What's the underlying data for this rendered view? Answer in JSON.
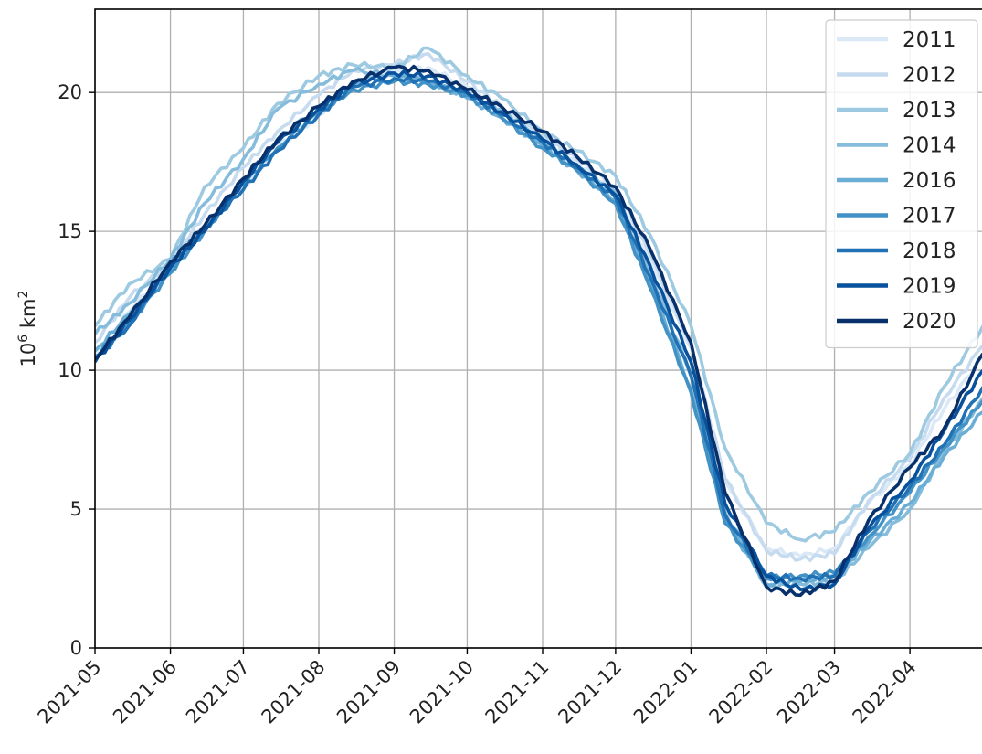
{
  "chart_data": {
    "type": "line",
    "title": "",
    "xlabel": "",
    "ylabel_base": "10",
    "ylabel_exp1": "6",
    "ylabel_unit": " km",
    "ylabel_exp2": "2",
    "x_ticks": [
      "2021-05",
      "2021-06",
      "2021-07",
      "2021-08",
      "2021-09",
      "2021-10",
      "2021-11",
      "2021-12",
      "2022-01",
      "2022-02",
      "2022-03",
      "2022-04"
    ],
    "x_domain": [
      "2021-05-01",
      "2022-05-01"
    ],
    "ylim": [
      0,
      23
    ],
    "y_ticks": [
      0,
      5,
      10,
      15,
      20
    ],
    "y_tick_labels": [
      "0",
      "5",
      "10",
      "15",
      "20"
    ],
    "grid": true,
    "legend_position": "top-right",
    "series": [
      {
        "name": "2011",
        "color": "#dbe9f6",
        "dates": [
          "2021-05-01",
          "2021-05-15",
          "2021-06-01",
          "2021-06-15",
          "2021-07-01",
          "2021-07-15",
          "2021-08-01",
          "2021-08-15",
          "2021-09-01",
          "2021-09-15",
          "2021-10-01",
          "2021-10-15",
          "2021-11-01",
          "2021-11-15",
          "2021-12-01",
          "2021-12-15",
          "2022-01-01",
          "2022-01-15",
          "2022-02-01",
          "2022-02-15",
          "2022-03-01",
          "2022-03-15",
          "2022-04-01",
          "2022-04-15",
          "2022-05-01"
        ],
        "values": [
          10.6,
          12.1,
          13.8,
          15.2,
          16.6,
          18.0,
          19.2,
          20.3,
          20.8,
          20.9,
          20.2,
          19.5,
          18.3,
          17.5,
          16.4,
          14.0,
          10.8,
          6.0,
          3.6,
          3.3,
          3.6,
          5.2,
          6.6,
          8.6,
          10.5
        ]
      },
      {
        "name": "2012",
        "color": "#c6dbef",
        "dates": [
          "2021-05-01",
          "2021-05-15",
          "2021-06-01",
          "2021-06-15",
          "2021-07-01",
          "2021-07-15",
          "2021-08-01",
          "2021-08-15",
          "2021-09-01",
          "2021-09-15",
          "2021-10-01",
          "2021-10-15",
          "2021-11-01",
          "2021-11-15",
          "2021-12-01",
          "2021-12-15",
          "2022-01-01",
          "2022-01-15",
          "2022-02-01",
          "2022-02-15",
          "2022-03-01",
          "2022-03-15",
          "2022-04-01",
          "2022-04-15",
          "2022-05-01"
        ],
        "values": [
          11.0,
          12.6,
          13.9,
          15.6,
          17.3,
          18.6,
          19.9,
          20.8,
          21.0,
          21.4,
          20.4,
          19.5,
          18.4,
          17.6,
          16.6,
          14.2,
          10.9,
          6.1,
          3.5,
          3.2,
          3.4,
          5.3,
          6.8,
          9.0,
          10.9
        ]
      },
      {
        "name": "2013",
        "color": "#9ecae1",
        "dates": [
          "2021-05-01",
          "2021-05-15",
          "2021-06-01",
          "2021-06-15",
          "2021-07-01",
          "2021-07-15",
          "2021-08-01",
          "2021-08-15",
          "2021-09-01",
          "2021-09-15",
          "2021-10-01",
          "2021-10-15",
          "2021-11-01",
          "2021-11-15",
          "2021-12-01",
          "2021-12-15",
          "2022-01-01",
          "2022-01-15",
          "2022-02-01",
          "2022-02-15",
          "2022-03-01",
          "2022-03-15",
          "2022-04-01",
          "2022-04-15",
          "2022-05-01"
        ],
        "values": [
          11.6,
          13.1,
          14.0,
          16.6,
          18.0,
          19.6,
          20.6,
          21.0,
          20.9,
          21.6,
          20.6,
          19.8,
          18.6,
          17.9,
          17.0,
          14.9,
          11.6,
          7.2,
          4.5,
          3.9,
          4.2,
          5.6,
          7.0,
          9.4,
          11.6
        ]
      },
      {
        "name": "2014",
        "color": "#85bcdb",
        "dates": [
          "2021-05-01",
          "2021-05-15",
          "2021-06-01",
          "2021-06-15",
          "2021-07-01",
          "2021-07-15",
          "2021-08-01",
          "2021-08-15",
          "2021-09-01",
          "2021-09-15",
          "2021-10-01",
          "2021-10-15",
          "2021-11-01",
          "2021-11-15",
          "2021-12-01",
          "2021-12-15",
          "2022-01-01",
          "2022-01-15",
          "2022-02-01",
          "2022-02-15",
          "2022-03-01",
          "2022-03-15",
          "2022-04-01",
          "2022-04-15",
          "2022-05-01"
        ],
        "values": [
          11.3,
          12.4,
          14.0,
          16.0,
          17.6,
          19.4,
          20.3,
          20.8,
          20.6,
          20.4,
          19.9,
          19.4,
          18.3,
          17.4,
          16.4,
          13.6,
          9.8,
          4.9,
          2.2,
          2.3,
          2.4,
          3.6,
          5.0,
          7.0,
          9.0
        ]
      },
      {
        "name": "2016",
        "color": "#6aaed6",
        "dates": [
          "2021-05-01",
          "2021-05-15",
          "2021-06-01",
          "2021-06-15",
          "2021-07-01",
          "2021-07-15",
          "2021-08-01",
          "2021-08-15",
          "2021-09-01",
          "2021-09-15",
          "2021-10-01",
          "2021-10-15",
          "2021-11-01",
          "2021-11-15",
          "2021-12-01",
          "2021-12-15",
          "2022-01-01",
          "2022-01-15",
          "2022-02-01",
          "2022-02-15",
          "2022-03-01",
          "2022-03-15",
          "2022-04-01",
          "2022-04-15",
          "2022-05-01"
        ],
        "values": [
          10.7,
          12.0,
          13.6,
          15.1,
          16.8,
          18.3,
          19.5,
          20.3,
          20.6,
          20.4,
          19.8,
          19.1,
          18.1,
          17.2,
          16.1,
          13.2,
          9.3,
          4.6,
          2.3,
          2.4,
          2.6,
          3.8,
          5.2,
          6.9,
          8.5
        ]
      },
      {
        "name": "2017",
        "color": "#4292c6",
        "dates": [
          "2021-05-01",
          "2021-05-15",
          "2021-06-01",
          "2021-06-15",
          "2021-07-01",
          "2021-07-15",
          "2021-08-01",
          "2021-08-15",
          "2021-09-01",
          "2021-09-15",
          "2021-10-01",
          "2021-10-15",
          "2021-11-01",
          "2021-11-15",
          "2021-12-01",
          "2021-12-15",
          "2022-01-01",
          "2022-01-15",
          "2022-02-01",
          "2022-02-15",
          "2022-03-01",
          "2022-03-15",
          "2022-04-01",
          "2022-04-15",
          "2022-05-01"
        ],
        "values": [
          10.5,
          11.7,
          13.5,
          15.0,
          16.7,
          18.0,
          19.3,
          20.1,
          20.4,
          20.3,
          19.9,
          19.1,
          18.0,
          17.2,
          16.0,
          13.0,
          9.2,
          4.5,
          2.5,
          2.6,
          2.7,
          4.0,
          5.6,
          7.2,
          8.9
        ]
      },
      {
        "name": "2018",
        "color": "#2171b5",
        "dates": [
          "2021-05-01",
          "2021-05-15",
          "2021-06-01",
          "2021-06-15",
          "2021-07-01",
          "2021-07-15",
          "2021-08-01",
          "2021-08-15",
          "2021-09-01",
          "2021-09-15",
          "2021-10-01",
          "2021-10-15",
          "2021-11-01",
          "2021-11-15",
          "2021-12-01",
          "2021-12-15",
          "2022-01-01",
          "2022-01-15",
          "2022-02-01",
          "2022-02-15",
          "2022-03-01",
          "2022-03-15",
          "2022-04-01",
          "2022-04-15",
          "2022-05-01"
        ],
        "values": [
          10.4,
          11.6,
          13.8,
          15.1,
          16.5,
          17.9,
          19.2,
          20.2,
          20.5,
          20.4,
          20.0,
          19.2,
          18.2,
          17.3,
          16.2,
          13.4,
          9.8,
          4.8,
          2.6,
          2.5,
          2.6,
          4.2,
          5.8,
          7.3,
          9.4
        ]
      },
      {
        "name": "2019",
        "color": "#08519c",
        "dates": [
          "2021-05-01",
          "2021-05-15",
          "2021-06-01",
          "2021-06-15",
          "2021-07-01",
          "2021-07-15",
          "2021-08-01",
          "2021-08-15",
          "2021-09-01",
          "2021-09-15",
          "2021-10-01",
          "2021-10-15",
          "2021-11-01",
          "2021-11-15",
          "2021-12-01",
          "2021-12-15",
          "2022-01-01",
          "2022-01-15",
          "2022-02-01",
          "2022-02-15",
          "2022-03-01",
          "2022-03-15",
          "2022-04-01",
          "2022-04-15",
          "2022-05-01"
        ],
        "values": [
          10.3,
          11.8,
          13.7,
          15.0,
          16.8,
          18.2,
          19.4,
          20.3,
          20.7,
          20.6,
          20.0,
          19.3,
          18.3,
          17.4,
          16.3,
          13.8,
          10.3,
          5.2,
          2.6,
          2.1,
          2.3,
          4.3,
          6.0,
          7.8,
          10.0
        ]
      },
      {
        "name": "2020",
        "color": "#08306b",
        "dates": [
          "2021-05-01",
          "2021-05-15",
          "2021-06-01",
          "2021-06-15",
          "2021-07-01",
          "2021-07-15",
          "2021-08-01",
          "2021-08-15",
          "2021-09-01",
          "2021-09-15",
          "2021-10-01",
          "2021-10-15",
          "2021-11-01",
          "2021-11-15",
          "2021-12-01",
          "2021-12-15",
          "2022-01-01",
          "2022-01-15",
          "2022-02-01",
          "2022-02-15",
          "2022-03-01",
          "2022-03-15",
          "2022-04-01",
          "2022-04-15",
          "2022-05-01"
        ],
        "values": [
          10.4,
          11.9,
          13.9,
          15.2,
          16.9,
          18.3,
          19.5,
          20.4,
          20.9,
          20.8,
          20.1,
          19.5,
          18.6,
          17.7,
          16.6,
          14.4,
          11.0,
          5.6,
          2.2,
          1.9,
          2.4,
          4.6,
          6.5,
          7.9,
          10.6
        ]
      }
    ]
  }
}
